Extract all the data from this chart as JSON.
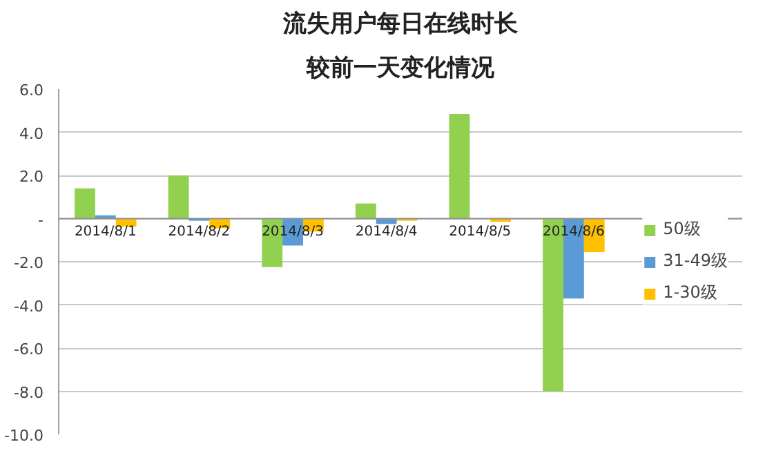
{
  "chart_data": {
    "type": "bar",
    "title": "流失用户每日在线时长",
    "subtitle": "较前一天变化情况",
    "categories": [
      "2014/8/1",
      "2014/8/2",
      "2014/8/3",
      "2014/8/4",
      "2014/8/5",
      "2014/8/6"
    ],
    "series": [
      {
        "name": "50级",
        "color": "#92d050",
        "values": [
          1.4,
          2.0,
          -2.25,
          0.7,
          4.85,
          -8.0
        ]
      },
      {
        "name": "31-49级",
        "color": "#5b9bd5",
        "values": [
          0.15,
          -0.1,
          -1.25,
          -0.25,
          0,
          -3.7
        ]
      },
      {
        "name": "1-30级",
        "color": "#ffc000",
        "values": [
          -0.37,
          -0.45,
          -0.6,
          -0.1,
          -0.15,
          -1.55
        ]
      }
    ],
    "ylim": [
      -10,
      6
    ],
    "yticks": [
      {
        "value": -10,
        "label": "-10.0"
      },
      {
        "value": -8,
        "label": "-8.0"
      },
      {
        "value": -6,
        "label": "-6.0"
      },
      {
        "value": -4,
        "label": "-4.0"
      },
      {
        "value": -2,
        "label": "-2.0"
      },
      {
        "value": 0,
        "label": "-"
      },
      {
        "value": 2,
        "label": "2.0"
      },
      {
        "value": 4,
        "label": "4.0"
      },
      {
        "value": 6,
        "label": "6.0"
      }
    ],
    "grid": "y",
    "legend": "right"
  }
}
